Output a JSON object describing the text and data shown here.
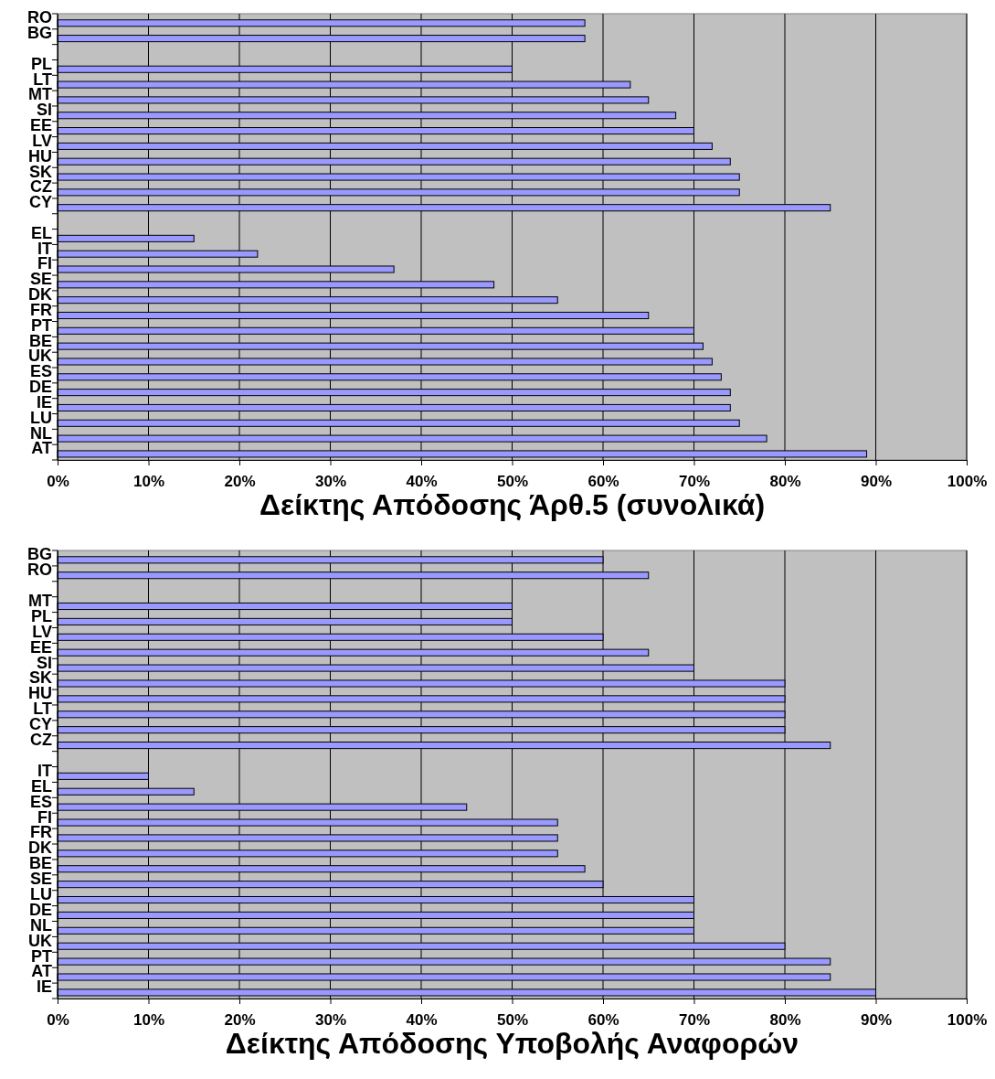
{
  "chart_data": [
    {
      "type": "bar",
      "orientation": "horizontal",
      "title": "Δείκτης Απόδοσης Άρθ.5 (συνολικά)",
      "categories": [
        "RO",
        "BG",
        null,
        "PL",
        "LT",
        "MT",
        "SI",
        "EE",
        "LV",
        "HU",
        "SK",
        "CZ",
        "CY",
        null,
        "EL",
        "IT",
        "FI",
        "SE",
        "DK",
        "FR",
        "PT",
        "BE",
        "UK",
        "ES",
        "DE",
        "IE",
        "LU",
        "NL",
        "AT"
      ],
      "values": [
        58,
        58,
        null,
        50,
        63,
        65,
        68,
        70,
        72,
        74,
        75,
        75,
        85,
        null,
        15,
        22,
        37,
        48,
        55,
        65,
        70,
        71,
        72,
        73,
        74,
        74,
        75,
        78,
        89
      ],
      "color": "#9999ff",
      "xlim": [
        0,
        100
      ],
      "xticks": [
        {
          "value": 0,
          "label": "0%"
        },
        {
          "value": 10,
          "label": "10%"
        },
        {
          "value": 20,
          "label": "20%"
        },
        {
          "value": 30,
          "label": "30%"
        },
        {
          "value": 40,
          "label": "40%"
        },
        {
          "value": 50,
          "label": "50%"
        },
        {
          "value": 60,
          "label": "60%"
        },
        {
          "value": 70,
          "label": "70%"
        },
        {
          "value": 80,
          "label": "80%"
        },
        {
          "value": 90,
          "label": "90%"
        },
        {
          "value": 100,
          "label": "100%"
        }
      ],
      "grid": "x"
    },
    {
      "type": "bar",
      "orientation": "horizontal",
      "title": "Δείκτης Απόδοσης Υποβολής Αναφορών",
      "categories": [
        "BG",
        "RO",
        null,
        "MT",
        "PL",
        "LV",
        "EE",
        "SI",
        "SK",
        "HU",
        "LT",
        "CY",
        "CZ",
        null,
        "IT",
        "EL",
        "ES",
        "FI",
        "FR",
        "DK",
        "BE",
        "SE",
        "LU",
        "DE",
        "NL",
        "UK",
        "PT",
        "AT",
        "IE"
      ],
      "values": [
        60,
        65,
        null,
        50,
        50,
        60,
        65,
        70,
        80,
        80,
        80,
        80,
        85,
        null,
        10,
        15,
        45,
        55,
        55,
        55,
        58,
        60,
        70,
        70,
        70,
        80,
        85,
        85,
        90
      ],
      "color": "#9999ff",
      "xlim": [
        0,
        100
      ],
      "xticks": [
        {
          "value": 0,
          "label": "0%"
        },
        {
          "value": 10,
          "label": "10%"
        },
        {
          "value": 20,
          "label": "20%"
        },
        {
          "value": 30,
          "label": "30%"
        },
        {
          "value": 40,
          "label": "40%"
        },
        {
          "value": 50,
          "label": "50%"
        },
        {
          "value": 60,
          "label": "60%"
        },
        {
          "value": 70,
          "label": "70%"
        },
        {
          "value": 80,
          "label": "80%"
        },
        {
          "value": 90,
          "label": "90%"
        },
        {
          "value": 100,
          "label": "100%"
        }
      ],
      "grid": "x"
    }
  ]
}
